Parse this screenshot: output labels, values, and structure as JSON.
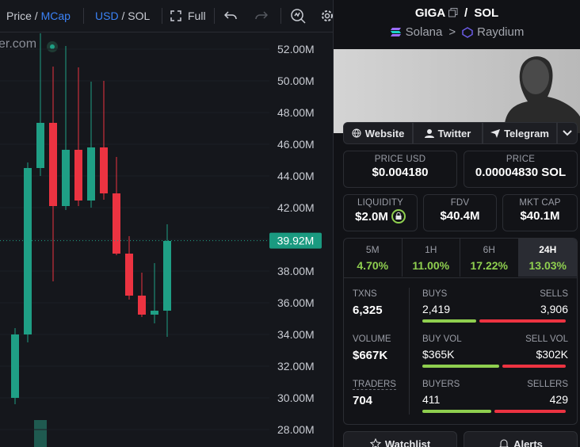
{
  "toolbar": {
    "price": "Price",
    "slash1": "/",
    "mcap": "MCap",
    "usd": "USD",
    "slash2": "/",
    "sol": "SOL",
    "full": "Full"
  },
  "watermark": "er.com",
  "chart_data": {
    "type": "candlestick",
    "up_color": "#1f9f85",
    "down_color": "#ec3341",
    "grid": true,
    "ylim": [
      26.9,
      53
    ],
    "yticks": [
      {
        "value": 52,
        "label": "52.00M"
      },
      {
        "value": 50,
        "label": "50.00M"
      },
      {
        "value": 48,
        "label": "48.00M"
      },
      {
        "value": 46,
        "label": "46.00M"
      },
      {
        "value": 44,
        "label": "44.00M"
      },
      {
        "value": 42,
        "label": "42.00M"
      },
      {
        "value": 40,
        "label": "40.00M"
      },
      {
        "value": 38,
        "label": "38.00M"
      },
      {
        "value": 36,
        "label": "36.00M"
      },
      {
        "value": 34,
        "label": "34.00M"
      },
      {
        "value": 32,
        "label": "32.00M"
      },
      {
        "value": 30,
        "label": "30.00M"
      },
      {
        "value": 28,
        "label": "28.00M"
      }
    ],
    "last_price": {
      "value": 39.92,
      "label": "39.92M"
    },
    "candles": [
      {
        "open": 30.0,
        "high": 34.4,
        "low": 29.6,
        "close": 34.0
      },
      {
        "open": 34.0,
        "high": 44.85,
        "low": 33.5,
        "close": 44.5
      },
      {
        "open": 44.5,
        "high": 53.0,
        "low": 44.0,
        "close": 47.35
      },
      {
        "open": 47.35,
        "high": 50.9,
        "low": 37.35,
        "close": 42.1
      },
      {
        "open": 42.1,
        "high": 52.2,
        "low": 41.85,
        "close": 45.65
      },
      {
        "open": 45.65,
        "high": 50.85,
        "low": 42.1,
        "close": 42.45
      },
      {
        "open": 42.45,
        "high": 49.95,
        "low": 42.0,
        "close": 45.8
      },
      {
        "open": 45.8,
        "high": 50.0,
        "low": 42.5,
        "close": 42.9
      },
      {
        "open": 42.9,
        "high": 45.2,
        "low": 39.0,
        "close": 39.1
      },
      {
        "open": 39.1,
        "high": 40.2,
        "low": 36.2,
        "close": 36.45
      },
      {
        "open": 36.45,
        "high": 37.9,
        "low": 35.1,
        "close": 35.25
      },
      {
        "open": 35.25,
        "high": 38.5,
        "low": 34.7,
        "close": 35.5
      },
      {
        "open": 35.5,
        "high": 40.95,
        "low": 33.85,
        "close": 39.9
      }
    ]
  },
  "header": {
    "base": "GIGA",
    "slash": "/",
    "quote": "SOL",
    "chain": "Solana",
    "sep": ">",
    "dex": "Raydium"
  },
  "links": {
    "website": "Website",
    "twitter": "Twitter",
    "telegram": "Telegram"
  },
  "price_usd": {
    "label": "PRICE USD",
    "value": "$0.004180"
  },
  "price_sol": {
    "label": "PRICE",
    "value": "0.00004830 SOL"
  },
  "liquidity": {
    "label": "LIQUIDITY",
    "value": "$2.0M"
  },
  "fdv": {
    "label": "FDV",
    "value": "$40.4M"
  },
  "mcap": {
    "label": "MKT CAP",
    "value": "$40.1M"
  },
  "timeframes": {
    "selected": 3,
    "items": [
      {
        "label": "5M",
        "value": "4.70%"
      },
      {
        "label": "1H",
        "value": "11.00%"
      },
      {
        "label": "6H",
        "value": "17.22%"
      },
      {
        "label": "24H",
        "value": "13.03%"
      }
    ]
  },
  "stats": {
    "rows": [
      {
        "label": "TXNS",
        "value": "6,325",
        "left_label": "BUYS",
        "left": {
          "value": 2419,
          "label": "2,419"
        },
        "right_label": "SELLS",
        "right": {
          "value": 3906,
          "label": "3,906"
        }
      },
      {
        "label": "VOLUME",
        "value": "$667K",
        "left_label": "BUY VOL",
        "left": {
          "value": 365000,
          "label": "$365K"
        },
        "right_label": "SELL VOL",
        "right": {
          "value": 302000,
          "label": "$302K"
        }
      },
      {
        "label": "TRADERS",
        "value": "704",
        "left_label": "BUYERS",
        "left": {
          "value": 411,
          "label": "411"
        },
        "right_label": "SELLERS",
        "right": {
          "value": 429,
          "label": "429"
        }
      }
    ]
  },
  "buttons": {
    "watchlist": "Watchlist",
    "alerts": "Alerts"
  }
}
